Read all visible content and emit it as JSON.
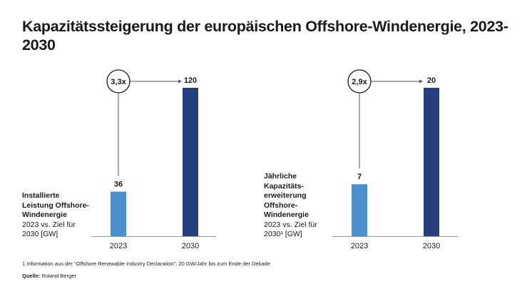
{
  "title": "Kapazitätssteigerung der europäischen Offshore-Windenergie, 2023-2030",
  "colors": {
    "bar_2023": "#4a90d0",
    "bar_2030": "#243f7e",
    "line": "#555555",
    "text": "#1a1a1a"
  },
  "chart_data": [
    {
      "type": "bar",
      "title": "Installierte Leistung Offshore-Windenergie",
      "label_bold_lines": [
        "Installierte",
        "Leistung Offshore-",
        "Windenergie"
      ],
      "label_sub_lines": [
        "2023 vs. Ziel für",
        "2030 [GW]"
      ],
      "categories": [
        "2023",
        "2030"
      ],
      "values": [
        36,
        120
      ],
      "value_labels": [
        "36",
        "120"
      ],
      "unit": "GW",
      "growth_factor": "3,3x",
      "ylim": [
        0,
        120
      ],
      "grid": false
    },
    {
      "type": "bar",
      "title": "Jährliche Kapazitätserweiterung Offshore-Windenergie",
      "label_bold_lines": [
        "Jährliche",
        "Kapazitäts-",
        "erweiterung",
        "Offshore-",
        "Windenergie"
      ],
      "label_sub_lines": [
        "2023 vs. Ziel für",
        "2030¹ [GW]"
      ],
      "categories": [
        "2023",
        "2030"
      ],
      "values": [
        7,
        20
      ],
      "value_labels": [
        "7",
        "20"
      ],
      "unit": "GW",
      "growth_factor": "2,9x",
      "ylim": [
        0,
        20
      ],
      "grid": false
    }
  ],
  "footnote": "1  Information aus der \"Offshore Renewable Industry Declaration\": 20 GW/Jahr bis zum Ende der Dekade",
  "source_label": "Quelle:",
  "source_value": "Roland Berger"
}
